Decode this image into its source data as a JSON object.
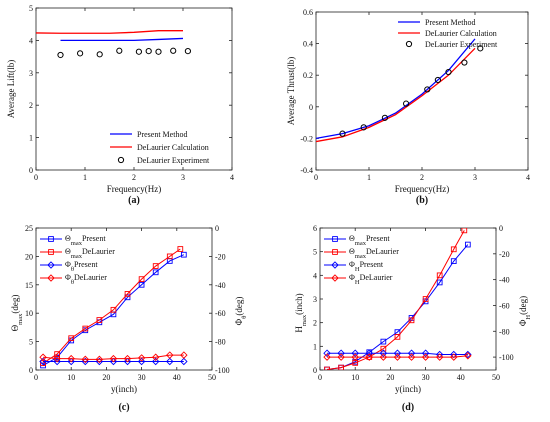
{
  "chart_data": [
    {
      "id": "a",
      "type": "line",
      "caption": "(a)",
      "xlabel": "Frequency(Hz)",
      "ylabel": "Average Lift(lb)",
      "xlim": [
        0,
        4
      ],
      "ylim": [
        0,
        5
      ],
      "xticks": [
        0,
        1,
        2,
        3,
        4
      ],
      "yticks": [
        0,
        1,
        2,
        3,
        4,
        5
      ],
      "legend_position": "bottom-right",
      "series": [
        {
          "name": "Present Method",
          "color": "#0000ff",
          "style": "line",
          "x": [
            0.5,
            1.0,
            1.5,
            2.0,
            2.5,
            3.0
          ],
          "y": [
            4.0,
            4.0,
            4.0,
            4.0,
            4.03,
            4.06
          ]
        },
        {
          "name": "DeLaurier Calculation",
          "color": "#ff0000",
          "style": "line",
          "x": [
            0.0,
            0.5,
            1.0,
            1.5,
            2.0,
            2.5,
            3.0
          ],
          "y": [
            4.23,
            4.22,
            4.22,
            4.22,
            4.25,
            4.3,
            4.3
          ]
        },
        {
          "name": "DeLaurier Experiment",
          "color": "#000000",
          "style": "circle",
          "x": [
            0.5,
            0.9,
            1.3,
            1.7,
            2.1,
            2.3,
            2.5,
            2.8,
            3.1
          ],
          "y": [
            3.55,
            3.6,
            3.57,
            3.68,
            3.65,
            3.67,
            3.65,
            3.68,
            3.67
          ]
        }
      ]
    },
    {
      "id": "b",
      "type": "line",
      "caption": "(b)",
      "xlabel": "Frequency(Hz)",
      "ylabel": "Average Thrust(lb)",
      "xlim": [
        0,
        4
      ],
      "ylim": [
        -0.4,
        0.6
      ],
      "xticks": [
        0,
        1,
        2,
        3,
        4
      ],
      "yticks": [
        -0.4,
        -0.2,
        0,
        0.2,
        0.4,
        0.6
      ],
      "legend_position": "top-right",
      "series": [
        {
          "name": "Present Method",
          "color": "#0000ff",
          "style": "line",
          "x": [
            0.0,
            0.5,
            1.0,
            1.5,
            2.0,
            2.5,
            3.0
          ],
          "y": [
            -0.2,
            -0.17,
            -0.12,
            -0.04,
            0.08,
            0.23,
            0.43
          ]
        },
        {
          "name": "DeLaurier Calculation",
          "color": "#ff0000",
          "style": "line",
          "x": [
            0.0,
            0.5,
            1.0,
            1.5,
            2.0,
            2.5,
            3.0
          ],
          "y": [
            -0.22,
            -0.19,
            -0.13,
            -0.05,
            0.07,
            0.2,
            0.37
          ]
        },
        {
          "name": "DeLaurier Experiment",
          "color": "#000000",
          "style": "circle",
          "x": [
            0.5,
            0.9,
            1.3,
            1.7,
            2.1,
            2.3,
            2.5,
            2.8,
            3.1
          ],
          "y": [
            -0.17,
            -0.13,
            -0.07,
            0.02,
            0.11,
            0.17,
            0.22,
            0.28,
            0.37
          ]
        }
      ]
    },
    {
      "id": "c",
      "type": "line",
      "caption": "(c)",
      "xlabel": "y(inch)",
      "ylabel_left": {
        "main": "Θ",
        "sub": "max",
        "unit": "(deg)"
      },
      "ylabel_right": {
        "main": "Φ",
        "sub": "θ",
        "unit": "(deg)"
      },
      "xlim": [
        0,
        50
      ],
      "ylim": [
        0,
        25
      ],
      "y2lim": [
        -100,
        0
      ],
      "xticks": [
        0,
        10,
        20,
        30,
        40,
        50
      ],
      "yticks": [
        0,
        5,
        10,
        15,
        20,
        25
      ],
      "y2ticks": [
        -100,
        -80,
        -60,
        -40,
        -20,
        0
      ],
      "legend_position": "top-left",
      "series": [
        {
          "legend": {
            "main": "Θ",
            "sub": "max",
            "rest": "Present"
          },
          "color": "#0000ff",
          "marker": "square",
          "axis": "left",
          "x": [
            2,
            6,
            10,
            14,
            18,
            22,
            26,
            30,
            34,
            38,
            42
          ],
          "y": [
            0.8,
            2.2,
            5.2,
            7.0,
            8.4,
            9.8,
            12.8,
            15.0,
            17.2,
            19.2,
            20.3
          ]
        },
        {
          "legend": {
            "main": "Θ",
            "sub": "max",
            "rest": "DeLaurier"
          },
          "color": "#ff0000",
          "marker": "square",
          "axis": "left",
          "x": [
            2,
            6,
            10,
            14,
            18,
            22,
            26,
            30,
            34,
            38,
            41
          ],
          "y": [
            1.2,
            2.8,
            5.6,
            7.3,
            8.8,
            10.6,
            13.4,
            16.0,
            18.3,
            20.0,
            21.3
          ]
        },
        {
          "legend": {
            "main": "Φ",
            "sub": "θ",
            "rest": "Present"
          },
          "color": "#0000ff",
          "marker": "diamond",
          "axis": "right",
          "x": [
            2,
            6,
            10,
            14,
            18,
            22,
            26,
            30,
            34,
            38,
            42
          ],
          "y": [
            -94,
            -94,
            -94,
            -94,
            -94,
            -94,
            -94,
            -94,
            -94,
            -94,
            -94
          ]
        },
        {
          "legend": {
            "main": "Φ",
            "sub": "θ",
            "rest": "DeLaurier"
          },
          "color": "#ff0000",
          "marker": "diamond",
          "axis": "right",
          "x": [
            2,
            6,
            10,
            14,
            18,
            22,
            26,
            30,
            34,
            38,
            42
          ],
          "y": [
            -91,
            -92,
            -92,
            -92.5,
            -92.5,
            -92,
            -92,
            -91.5,
            -91,
            -89.5,
            -89.5
          ]
        }
      ]
    },
    {
      "id": "d",
      "type": "line",
      "caption": "(d)",
      "xlabel": "y(inch)",
      "ylabel_left": {
        "main": "H",
        "sub": "max",
        "unit": "(inch)"
      },
      "ylabel_right": {
        "main": "Φ",
        "sub": "H",
        "unit": "(deg)"
      },
      "xlim": [
        0,
        50
      ],
      "ylim": [
        0,
        6
      ],
      "y2lim": [
        -110,
        0
      ],
      "xticks": [
        0,
        10,
        20,
        30,
        40,
        50
      ],
      "yticks": [
        0,
        1,
        2,
        3,
        4,
        5,
        6
      ],
      "y2ticks": [
        -100,
        -80,
        -60,
        -40,
        -20,
        0
      ],
      "legend_position": "top-left",
      "series": [
        {
          "legend": {
            "main": "Θ",
            "sub": "max",
            "rest": "Present"
          },
          "color": "#0000ff",
          "marker": "square",
          "axis": "left",
          "x": [
            2,
            6,
            10,
            14,
            18,
            22,
            26,
            30,
            34,
            38,
            42
          ],
          "y": [
            0.02,
            0.1,
            0.35,
            0.75,
            1.2,
            1.6,
            2.2,
            2.9,
            3.7,
            4.6,
            5.3
          ]
        },
        {
          "legend": {
            "main": "Θ",
            "sub": "max",
            "rest": "DeLaurier"
          },
          "color": "#ff0000",
          "marker": "square",
          "axis": "left",
          "x": [
            2,
            6,
            10,
            14,
            18,
            22,
            26,
            30,
            34,
            38,
            41
          ],
          "y": [
            0.02,
            0.1,
            0.3,
            0.55,
            0.9,
            1.4,
            2.1,
            3.0,
            4.0,
            5.1,
            5.9
          ]
        },
        {
          "legend": {
            "main": "Φ",
            "sub": "H",
            "rest": "Present"
          },
          "color": "#0000ff",
          "marker": "diamond",
          "axis": "right",
          "x": [
            2,
            6,
            10,
            14,
            18,
            22,
            26,
            30,
            34,
            38,
            42
          ],
          "y": [
            -97,
            -97,
            -97,
            -97,
            -97,
            -97,
            -97,
            -97,
            -98,
            -98,
            -98
          ]
        },
        {
          "legend": {
            "main": "Φ",
            "sub": "H",
            "rest": "DeLaurier"
          },
          "color": "#ff0000",
          "marker": "diamond",
          "axis": "right",
          "x": [
            2,
            6,
            10,
            14,
            18,
            22,
            26,
            30,
            34,
            38,
            42
          ],
          "y": [
            -100,
            -100,
            -100,
            -100,
            -100,
            -100,
            -100,
            -100,
            -100,
            -100,
            -99
          ]
        }
      ]
    }
  ]
}
